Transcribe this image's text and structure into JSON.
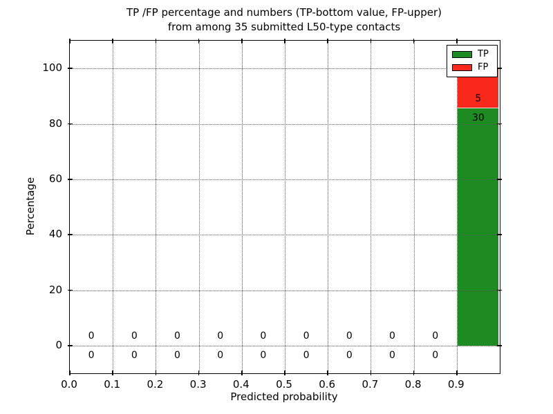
{
  "chart_data": {
    "type": "bar",
    "stacked": true,
    "title_line1": "TP /FP percentage and numbers (TP-bottom value, FP-upper)",
    "title_line2": "from among 35 submitted L50-type contacts",
    "xlabel": "Predicted probability",
    "ylabel": "Percentage",
    "total_submitted": 35,
    "xlim": [
      0.0,
      1.0
    ],
    "ylim": [
      -10,
      110
    ],
    "bin_width": 0.1,
    "grid": "dotted",
    "legend_position": "upper right",
    "xtick_values": [
      0.0,
      0.1,
      0.2,
      0.3,
      0.4,
      0.5,
      0.6,
      0.7,
      0.8,
      0.9
    ],
    "xtick_labels": [
      "0.0",
      "0.1",
      "0.2",
      "0.3",
      "0.4",
      "0.5",
      "0.6",
      "0.7",
      "0.8",
      "0.9"
    ],
    "ytick_values": [
      0,
      20,
      40,
      60,
      80,
      100
    ],
    "ytick_labels": [
      "0",
      "20",
      "40",
      "60",
      "80",
      "100"
    ],
    "categories": [
      "0.0-0.1",
      "0.1-0.2",
      "0.2-0.3",
      "0.3-0.4",
      "0.4-0.5",
      "0.5-0.6",
      "0.6-0.7",
      "0.7-0.8",
      "0.8-0.9",
      "0.9-1.0"
    ],
    "series": [
      {
        "name": "TP",
        "color": "#1e8b22",
        "counts": [
          0,
          0,
          0,
          0,
          0,
          0,
          0,
          0,
          0,
          30
        ],
        "percentages": [
          0,
          0,
          0,
          0,
          0,
          0,
          0,
          0,
          0,
          85.71
        ]
      },
      {
        "name": "FP",
        "color": "#f8281c",
        "counts": [
          0,
          0,
          0,
          0,
          0,
          0,
          0,
          0,
          0,
          5
        ],
        "percentages": [
          0,
          0,
          0,
          0,
          0,
          0,
          0,
          0,
          0,
          14.29
        ]
      }
    ]
  }
}
